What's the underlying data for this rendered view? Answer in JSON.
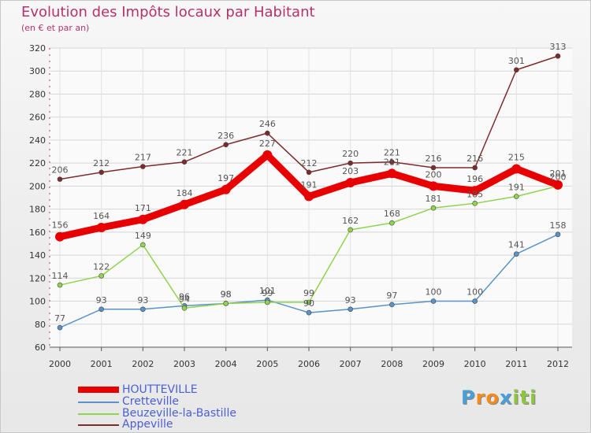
{
  "header": {
    "title": "Evolution des Impôts locaux par Habitant",
    "subtitle": "(en € et par an)"
  },
  "chart_data": {
    "type": "line",
    "title": "Evolution des Impôts locaux par Habitant",
    "subtitle": "(en € et par an)",
    "xlabel": "",
    "ylabel": "",
    "x": [
      "2000",
      "2001",
      "2002",
      "2003",
      "2004",
      "2005",
      "2006",
      "2007",
      "2008",
      "2009",
      "2010",
      "2011",
      "2012"
    ],
    "ylim": [
      60,
      320
    ],
    "yticks": [
      "60",
      "80",
      "100",
      "120",
      "140",
      "160",
      "180",
      "200",
      "220",
      "240",
      "260",
      "280",
      "300",
      "320"
    ],
    "grid": true,
    "series": [
      {
        "name": "HOUTTEVILLE",
        "color": "#e80000",
        "labels_color": "#555555",
        "values": [
          156,
          164,
          171,
          184,
          197,
          227,
          191,
          203,
          211,
          200,
          196,
          215,
          201
        ],
        "labels": [
          "156",
          "164",
          "171",
          "184",
          "197",
          "227",
          "191",
          "203",
          "211",
          "200",
          "196",
          "215",
          "201"
        ]
      },
      {
        "name": "Cretteville",
        "color": "#5a93c9",
        "values": [
          77,
          93,
          93,
          96,
          98,
          101,
          90,
          93,
          97,
          100,
          100,
          141,
          158
        ],
        "labels": [
          "77",
          "93",
          "93",
          "96",
          "98",
          "101",
          "90",
          "93",
          "97",
          "100",
          "100",
          "141",
          "158"
        ]
      },
      {
        "name": "Beuzeville-la-Bastille",
        "color": "#8fd44f",
        "values": [
          114,
          122,
          149,
          94,
          98,
          99,
          99,
          162,
          168,
          181,
          185,
          191,
          200
        ],
        "labels": [
          "114",
          "122",
          "149",
          "94",
          "98",
          "99",
          "99",
          "162",
          "168",
          "181",
          "185",
          "191",
          "200"
        ]
      },
      {
        "name": "Appeville",
        "color": "#7d2b2b",
        "values": [
          206,
          212,
          217,
          221,
          236,
          246,
          212,
          220,
          221,
          216,
          216,
          301,
          313
        ],
        "labels": [
          "206",
          "212",
          "217",
          "221",
          "236",
          "246",
          "212",
          "220",
          "221",
          "216",
          "216",
          "301",
          "313"
        ]
      }
    ],
    "legend": {
      "position": "bottom-left",
      "entries": [
        "HOUTTEVILLE",
        "Cretteville",
        "Beuzeville-la-Bastille",
        "Appeville"
      ]
    }
  },
  "logo": {
    "letters": [
      "P",
      "r",
      "o",
      "x",
      "i",
      "t",
      "i"
    ],
    "colors": [
      "#4a9fd8",
      "#f28c1e",
      "#f28c1e",
      "#4a9fd8",
      "#8cc63f",
      "#8cc63f",
      "#8cc63f"
    ]
  }
}
